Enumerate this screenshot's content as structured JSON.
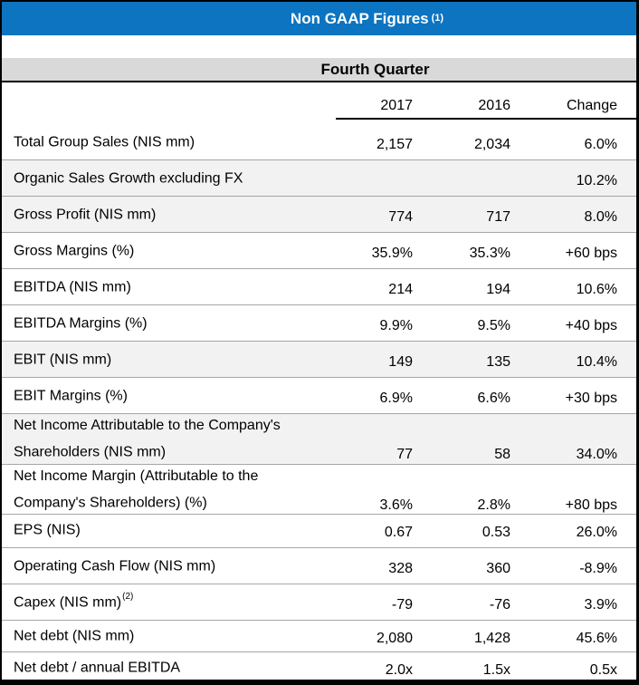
{
  "title": {
    "text": "Non GAAP Figures",
    "superscript": "(1)"
  },
  "subtitle": "Fourth Quarter",
  "columns": {
    "col1": "2017",
    "col2": "2016",
    "col3": "Change"
  },
  "colors": {
    "header_blue": "#0c74c0",
    "subtitle_gray": "#d9d9d9",
    "row_shade_gray": "#f2f2f2",
    "separator_gray": "#a6a6a6"
  },
  "rows": [
    {
      "label": "Total Group Sales (NIS mm)",
      "sup": "",
      "v2017": "2,157",
      "v2016": "2,034",
      "change": "6.0%",
      "shaded": false
    },
    {
      "label": "Organic Sales Growth excluding FX",
      "sup": "",
      "v2017": "",
      "v2016": "",
      "change": "10.2%",
      "shaded": true
    },
    {
      "label": "Gross Profit (NIS mm)",
      "sup": "",
      "v2017": "774",
      "v2016": "717",
      "change": "8.0%",
      "shaded": true
    },
    {
      "label": "Gross Margins (%)",
      "sup": "",
      "v2017": "35.9%",
      "v2016": "35.3%",
      "change": "+60 bps",
      "shaded": false
    },
    {
      "label": "EBITDA (NIS mm)",
      "sup": "",
      "v2017": "214",
      "v2016": "194",
      "change": "10.6%",
      "shaded": false
    },
    {
      "label": "EBITDA Margins (%)",
      "sup": "",
      "v2017": "9.9%",
      "v2016": "9.5%",
      "change": "+40 bps",
      "shaded": false
    },
    {
      "label": "EBIT (NIS mm)",
      "sup": "",
      "v2017": "149",
      "v2016": "135",
      "change": "10.4%",
      "shaded": true
    },
    {
      "label": "EBIT Margins (%)",
      "sup": "",
      "v2017": "6.9%",
      "v2016": "6.6%",
      "change": "+30 bps",
      "shaded": false
    },
    {
      "label": "Net Income Attributable to the Company's Shareholders (NIS mm)",
      "sup": "",
      "v2017": "77",
      "v2016": "58",
      "change": "34.0%",
      "shaded": true
    },
    {
      "label": "Net Income Margin (Attributable to the Company's Shareholders) (%)",
      "sup": "",
      "v2017": "3.6%",
      "v2016": "2.8%",
      "change": "+80 bps",
      "shaded": false
    },
    {
      "label": "EPS (NIS)",
      "sup": "",
      "v2017": "0.67",
      "v2016": "0.53",
      "change": "26.0%",
      "shaded": false
    },
    {
      "label": "Operating Cash Flow (NIS mm)",
      "sup": "",
      "v2017": "328",
      "v2016": "360",
      "change": "-8.9%",
      "shaded": false
    },
    {
      "label": "Capex (NIS mm)",
      "sup": "(2)",
      "v2017": "-79",
      "v2016": "-76",
      "change": "3.9%",
      "shaded": false
    },
    {
      "label": "Net debt (NIS mm)",
      "sup": "",
      "v2017": "2,080",
      "v2016": "1,428",
      "change": "45.6%",
      "shaded": false
    },
    {
      "label": "Net debt / annual EBITDA",
      "sup": "",
      "v2017": "2.0x",
      "v2016": "1.5x",
      "change": "0.5x",
      "shaded": false
    }
  ]
}
